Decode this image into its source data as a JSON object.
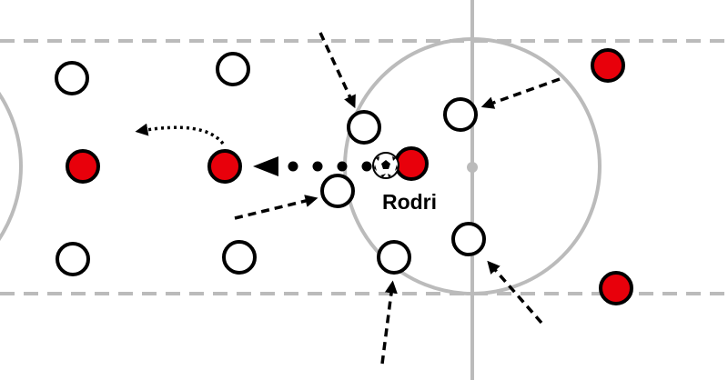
{
  "player_label": "Rodri"
}
